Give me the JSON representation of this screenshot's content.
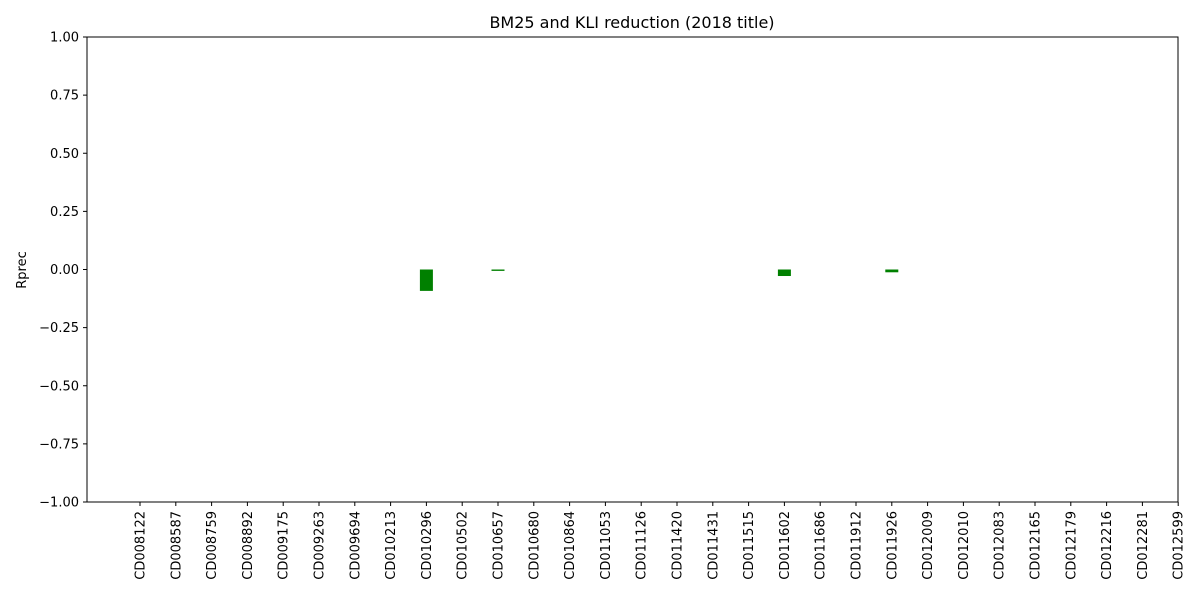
{
  "chart_data": {
    "type": "bar",
    "title": "BM25 and KLI reduction (2018 title)",
    "xlabel": "",
    "ylabel": "Rprec",
    "ylim": [
      -1.0,
      1.0
    ],
    "yticks": [
      "1.00",
      "0.75",
      "0.50",
      "0.25",
      "0.00",
      "−0.25",
      "−0.50",
      "−0.75",
      "−1.00"
    ],
    "grid": false,
    "bar_color": "#008000",
    "categories": [
      "CD008122",
      "CD008587",
      "CD008759",
      "CD008892",
      "CD009175",
      "CD009263",
      "CD009694",
      "CD010213",
      "CD010296",
      "CD010502",
      "CD010657",
      "CD010680",
      "CD010864",
      "CD011053",
      "CD011126",
      "CD011420",
      "CD011431",
      "CD011515",
      "CD011602",
      "CD011686",
      "CD011912",
      "CD011926",
      "CD012009",
      "CD012010",
      "CD012083",
      "CD012165",
      "CD012179",
      "CD012216",
      "CD012281",
      "CD012599"
    ],
    "values": [
      0,
      0,
      0,
      0,
      0,
      0,
      0,
      0,
      -0.092,
      0,
      -0.006,
      0,
      0,
      0,
      0,
      0,
      0,
      0,
      -0.028,
      0,
      0,
      -0.012,
      0,
      0,
      0,
      0,
      0,
      0,
      0,
      0
    ]
  }
}
